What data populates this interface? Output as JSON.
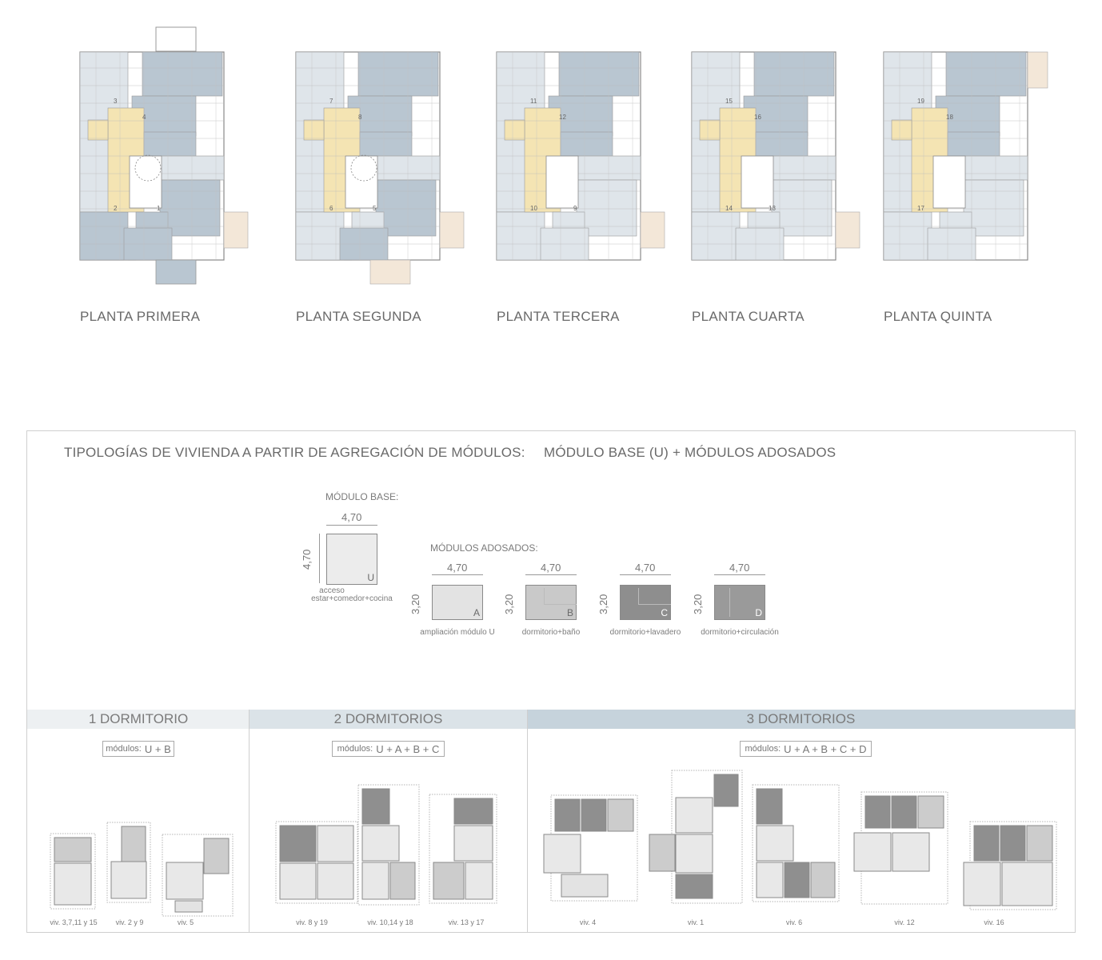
{
  "floor_plans": [
    {
      "label": "PLANTA PRIMERA",
      "unit_numbers": [
        "3",
        "4",
        "2",
        "1"
      ]
    },
    {
      "label": "PLANTA SEGUNDA",
      "unit_numbers": [
        "7",
        "8",
        "6",
        "5"
      ]
    },
    {
      "label": "PLANTA TERCERA",
      "unit_numbers": [
        "11",
        "12",
        "10",
        "9"
      ]
    },
    {
      "label": "PLANTA CUARTA",
      "unit_numbers": [
        "15",
        "16",
        "14",
        "13"
      ]
    },
    {
      "label": "PLANTA QUINTA",
      "unit_numbers": [
        "19",
        "18",
        "17"
      ]
    }
  ],
  "typologies": {
    "title_left": "TIPOLOGÍAS DE VIVIENDA A PARTIR DE AGREGACIÓN DE MÓDULOS:",
    "title_right": "MÓDULO BASE (U) + MÓDULOS ADOSADOS",
    "base_label": "MÓDULO BASE:",
    "base_width": "4,70",
    "base_height": "4,70",
    "base_letter": "U",
    "base_caption_1": "acceso",
    "base_caption_2": "estar+comedor+cocina",
    "adosados_label": "MÓDULOS ADOSADOS:",
    "modules": [
      {
        "letter": "A",
        "width": "4,70",
        "height": "3,20",
        "caption": "ampliación módulo U",
        "color": "#e3e3e3"
      },
      {
        "letter": "B",
        "width": "4,70",
        "height": "3,20",
        "caption": "dormitorio+baño",
        "color": "#c9c9c9"
      },
      {
        "letter": "C",
        "width": "4,70",
        "height": "3,20",
        "caption": "dormitorio+lavadero",
        "color": "#8e8e8e"
      },
      {
        "letter": "D",
        "width": "4,70",
        "height": "3,20",
        "caption": "dormitorio+circulación",
        "color": "#9a9a9a"
      }
    ]
  },
  "groups": [
    {
      "title": "1 DORMITORIO",
      "modules_prefix": "módulos:",
      "modules_text": "U + B",
      "band_color": "#edf0f2",
      "vivs": [
        "viv. 3,7,11 y 15",
        "viv. 2 y 9",
        "viv. 5"
      ]
    },
    {
      "title": "2 DORMITORIOS",
      "modules_prefix": "módulos:",
      "modules_text": "U + A + B + C",
      "band_color": "#dbe3e8",
      "vivs": [
        "viv. 8 y 19",
        "viv. 10,14 y 18",
        "viv. 13 y 17"
      ]
    },
    {
      "title": "3 DORMITORIOS",
      "modules_prefix": "módulos:",
      "modules_text": "U + A + B + C + D",
      "band_color": "#c6d3dc",
      "vivs": [
        "viv. 4",
        "viv. 1",
        "viv. 6",
        "viv. 12",
        "viv. 16"
      ]
    }
  ],
  "colors": {
    "circulation": "#f4e4b3",
    "unit_dark": "#b9c6d1",
    "unit_light": "#dfe5ea",
    "terrace": "#f3e7d8"
  }
}
